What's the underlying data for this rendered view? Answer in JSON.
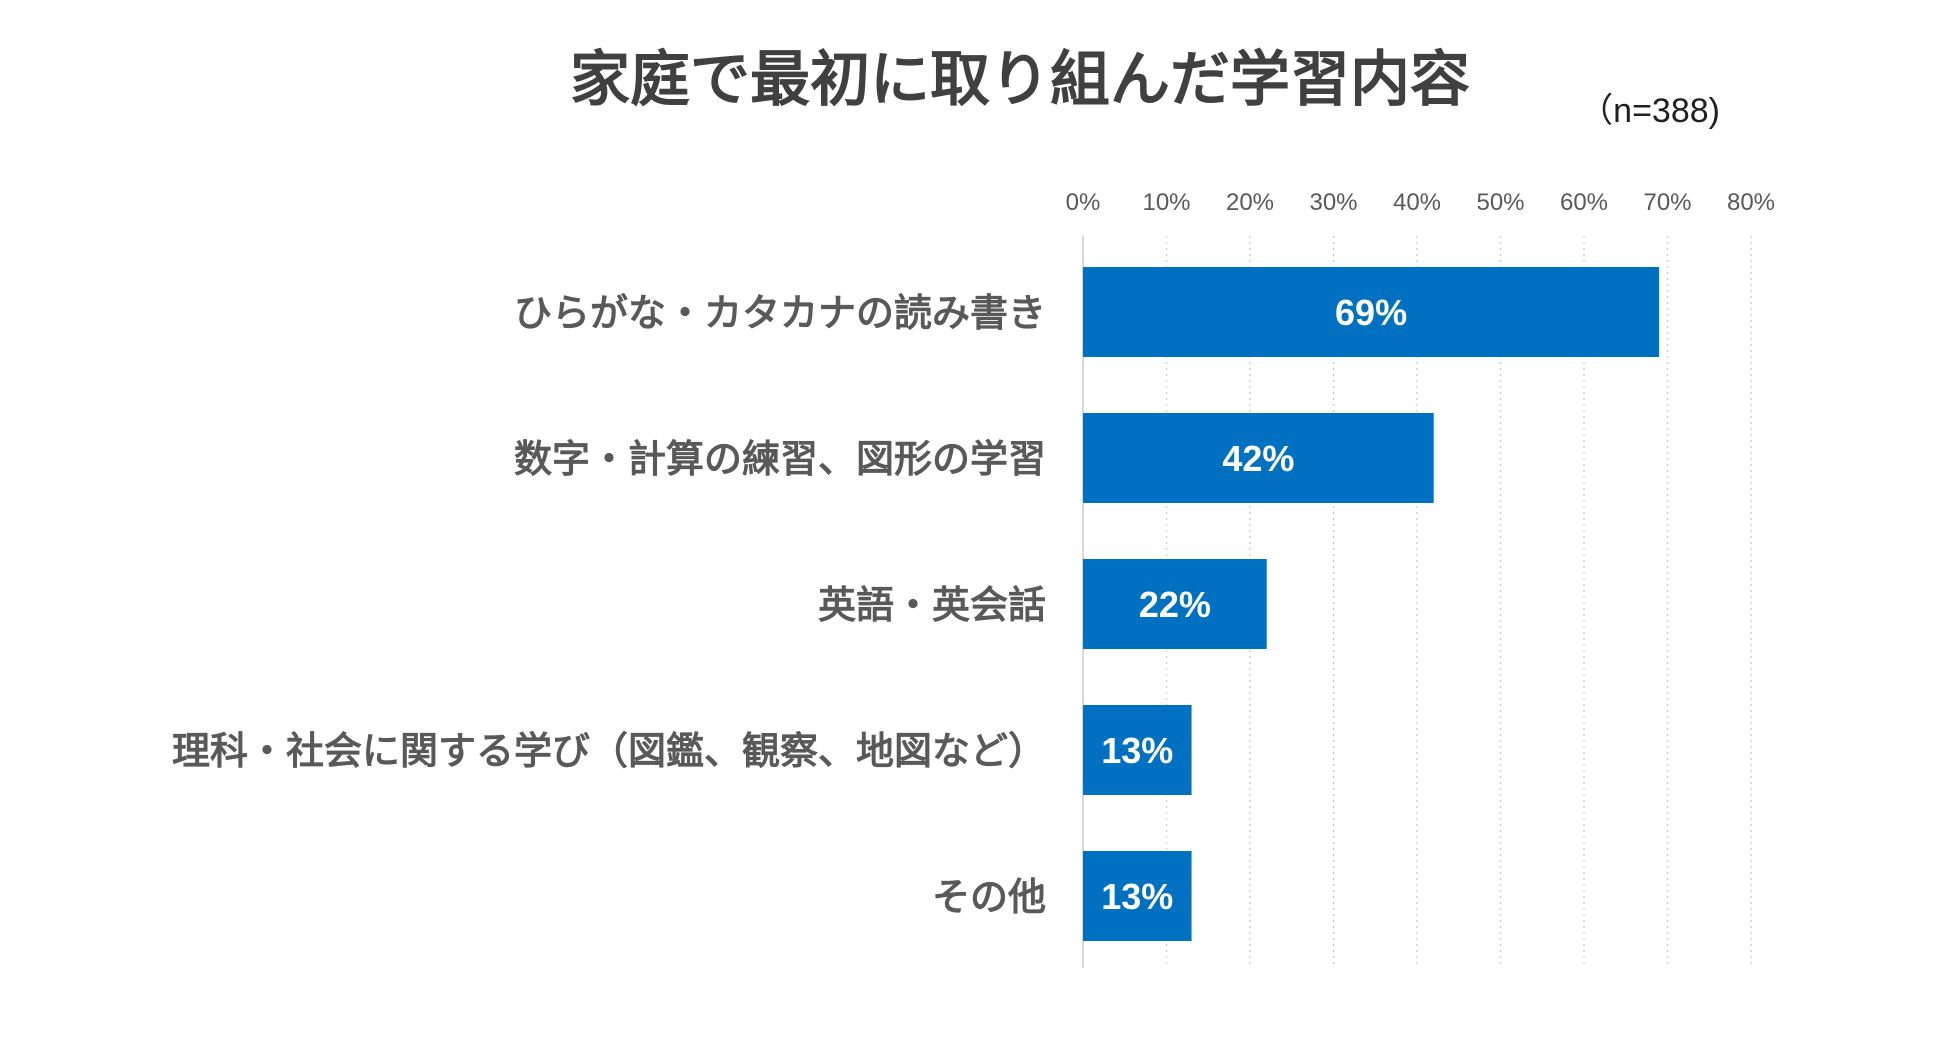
{
  "chart_data": {
    "type": "bar",
    "orientation": "horizontal",
    "title": "家庭で最初に取り組んだ学習内容",
    "subtitle": "（n=388)",
    "categories": [
      "ひらがな・カタカナの読み書き",
      "数字・計算の練習、図形の学習",
      "英語・英会話",
      "理科・社会に関する学び（図鑑、観察、地図など）",
      "その他"
    ],
    "values": [
      69,
      42,
      22,
      13,
      13
    ],
    "value_labels": [
      "69%",
      "42%",
      "22%",
      "13%",
      "13%"
    ],
    "xlim": [
      0,
      80
    ],
    "x_ticks": [
      "0%",
      "10%",
      "20%",
      "30%",
      "40%",
      "50%",
      "60%",
      "70%",
      "80%"
    ],
    "x_axis_position": "top",
    "grid": "vertical dotted",
    "legend": "none",
    "bar_color": "#0070C0"
  }
}
